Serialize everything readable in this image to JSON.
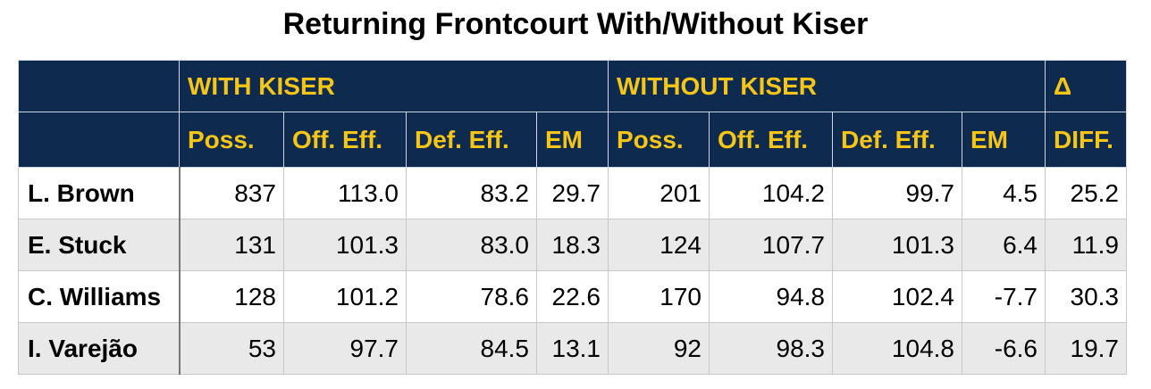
{
  "title": "Returning Frontcourt With/Without Kiser",
  "groups": {
    "with": "WITH KISER",
    "without": "WITHOUT KISER",
    "delta": "Δ"
  },
  "columns": {
    "poss": "Poss.",
    "off": "Off. Eff.",
    "def": "Def. Eff.",
    "em": "EM",
    "poss2": "Poss.",
    "off2": "Off. Eff.",
    "def2": "Def. Eff.",
    "em2": "EM",
    "diff": "DIFF."
  },
  "rows": [
    {
      "name": "L. Brown",
      "w_poss": "837",
      "w_off": "113.0",
      "w_def": "83.2",
      "w_em": "29.7",
      "wo_poss": "201",
      "wo_off": "104.2",
      "wo_def": "99.7",
      "wo_em": "4.5",
      "diff": "25.2"
    },
    {
      "name": "E. Stuck",
      "w_poss": "131",
      "w_off": "101.3",
      "w_def": "83.0",
      "w_em": "18.3",
      "wo_poss": "124",
      "wo_off": "107.7",
      "wo_def": "101.3",
      "wo_em": "6.4",
      "diff": "11.9"
    },
    {
      "name": "C. Williams",
      "w_poss": "128",
      "w_off": "101.2",
      "w_def": "78.6",
      "w_em": "22.6",
      "wo_poss": "170",
      "wo_off": "94.8",
      "wo_def": "102.4",
      "wo_em": "-7.7",
      "diff": "30.3"
    },
    {
      "name": "I. Varejão",
      "w_poss": "53",
      "w_off": "97.7",
      "w_def": "84.5",
      "w_em": "13.1",
      "wo_poss": "92",
      "wo_off": "98.3",
      "wo_def": "104.8",
      "wo_em": "-6.6",
      "diff": "19.7"
    }
  ]
}
